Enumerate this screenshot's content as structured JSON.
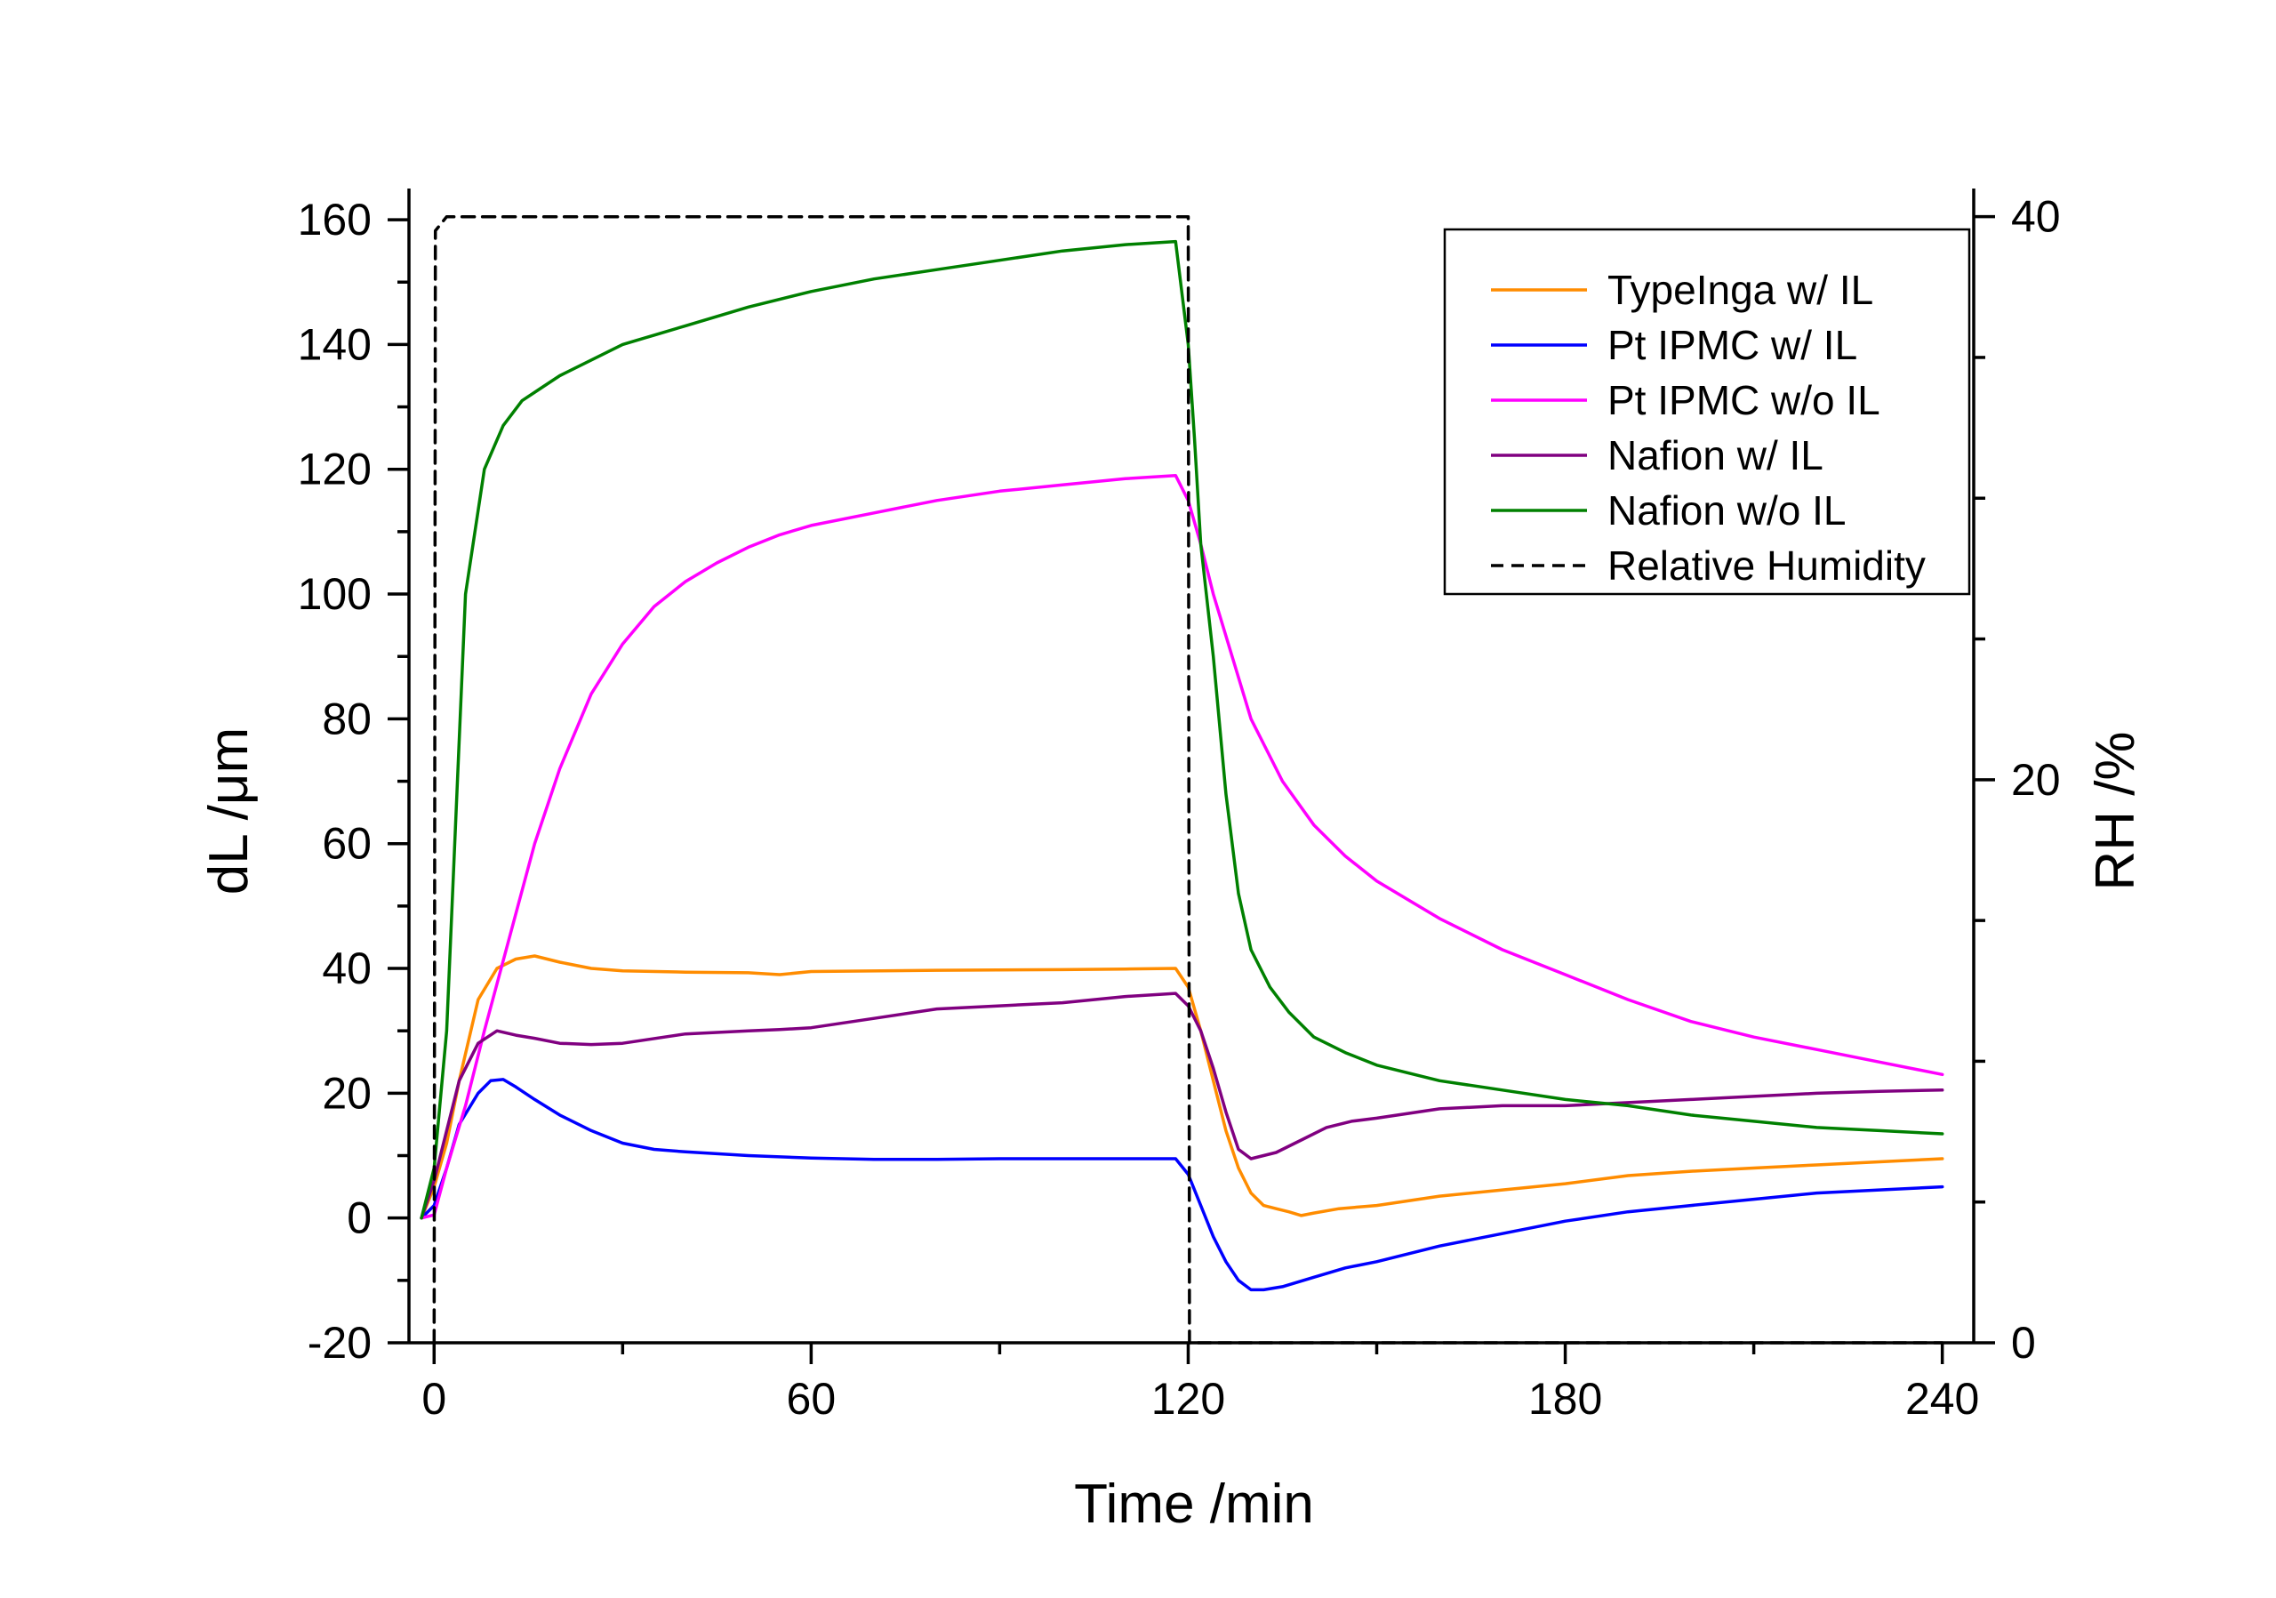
{
  "chart_data": {
    "type": "line",
    "xlabel": "Time /min",
    "ylabel": "dL /μm",
    "y2label": "RH /%",
    "xlim": [
      -4,
      245
    ],
    "ylim": [
      -20,
      165
    ],
    "y2lim": [
      0,
      41
    ],
    "xticks": [
      0,
      60,
      120,
      180,
      240
    ],
    "yticks": [
      -20,
      0,
      20,
      40,
      60,
      80,
      100,
      120,
      140,
      160
    ],
    "y2ticks": [
      0,
      20,
      40
    ],
    "legend_position": "top-right",
    "series": [
      {
        "name": "TypeInga w/ IL",
        "axis": "left",
        "color": "#ff8c00",
        "style": "solid",
        "x": [
          -2,
          0,
          2,
          4,
          7,
          10,
          13,
          16,
          20,
          25,
          30,
          40,
          50,
          55,
          60,
          80,
          100,
          110,
          118,
          120,
          122,
          124,
          126,
          128,
          130,
          132,
          134,
          136,
          138,
          140,
          144,
          150,
          160,
          170,
          180,
          190,
          200,
          210,
          220,
          230,
          240
        ],
        "y": [
          0,
          5,
          12,
          22,
          35,
          40,
          41.5,
          42,
          41,
          40,
          39.6,
          39.4,
          39.3,
          39,
          39.5,
          39.7,
          39.8,
          39.9,
          40,
          37,
          30,
          22,
          14,
          8,
          4,
          2,
          1.5,
          1,
          0.4,
          0.8,
          1.5,
          2,
          3.5,
          4.5,
          5.5,
          6.8,
          7.5,
          8,
          8.5,
          9,
          9.5
        ]
      },
      {
        "name": "Pt IPMC w/ IL",
        "axis": "left",
        "color": "#0000ff",
        "style": "solid",
        "x": [
          -2,
          0,
          2,
          4,
          7,
          9,
          11,
          13,
          16,
          20,
          25,
          30,
          35,
          40,
          50,
          60,
          70,
          80,
          90,
          100,
          110,
          118,
          120,
          122,
          124,
          126,
          128,
          130,
          132,
          135,
          140,
          145,
          150,
          160,
          170,
          180,
          190,
          200,
          210,
          220,
          230,
          240
        ],
        "y": [
          0,
          2,
          8,
          15,
          20,
          22,
          22.2,
          21,
          19,
          16.5,
          14,
          12,
          11,
          10.6,
          10,
          9.6,
          9.4,
          9.4,
          9.5,
          9.5,
          9.5,
          9.5,
          7,
          2,
          -3,
          -7,
          -10,
          -11.5,
          -11.5,
          -11,
          -9.5,
          -8,
          -7,
          -4.5,
          -2.5,
          -0.5,
          1,
          2,
          3,
          4,
          4.5,
          5
        ]
      },
      {
        "name": "Pt IPMC w/o IL",
        "axis": "left",
        "color": "#ff00ff",
        "style": "solid",
        "x": [
          -2,
          0,
          2,
          5,
          8,
          12,
          16,
          20,
          25,
          30,
          35,
          40,
          45,
          50,
          55,
          60,
          70,
          80,
          90,
          100,
          110,
          118,
          120,
          122,
          124,
          127,
          130,
          135,
          140,
          145,
          150,
          160,
          170,
          180,
          190,
          200,
          210,
          220,
          230,
          240
        ],
        "y": [
          0,
          0.5,
          8,
          18,
          30,
          45,
          60,
          72,
          84,
          92,
          98,
          102,
          105,
          107.5,
          109.5,
          111,
          113,
          115,
          116.5,
          117.5,
          118.5,
          119,
          115,
          108,
          100,
          90,
          80,
          70,
          63,
          58,
          54,
          48,
          43,
          39,
          35,
          31.5,
          29,
          27,
          25,
          23
        ]
      },
      {
        "name": "Nafion w/ IL",
        "axis": "left",
        "color": "#800080",
        "style": "solid",
        "x": [
          -2,
          0,
          2,
          4,
          7,
          10,
          13,
          16,
          20,
          25,
          30,
          40,
          50,
          55,
          60,
          70,
          80,
          90,
          100,
          110,
          118,
          120,
          122,
          124,
          126,
          128,
          130,
          134,
          138,
          142,
          146,
          150,
          160,
          170,
          180,
          190,
          200,
          210,
          220,
          230,
          240
        ],
        "y": [
          0,
          6,
          14,
          22,
          28,
          30,
          29.3,
          28.8,
          28,
          27.8,
          28,
          29.5,
          30,
          30.2,
          30.5,
          32,
          33.5,
          34,
          34.5,
          35.5,
          36,
          34,
          30,
          24,
          17,
          11,
          9.5,
          10.5,
          12.5,
          14.5,
          15.5,
          16,
          17.5,
          18,
          18,
          18.5,
          19,
          19.5,
          20,
          20.3,
          20.5
        ]
      },
      {
        "name": "Nafion w/o IL",
        "axis": "left",
        "color": "#008000",
        "style": "solid",
        "x": [
          -2,
          0,
          2,
          5,
          8,
          11,
          14,
          17,
          20,
          25,
          30,
          35,
          40,
          50,
          60,
          70,
          80,
          90,
          100,
          110,
          118,
          120,
          121,
          122,
          124,
          126,
          128,
          130,
          133,
          136,
          140,
          145,
          150,
          160,
          170,
          180,
          190,
          200,
          210,
          220,
          230,
          240
        ],
        "y": [
          0,
          8,
          30,
          100,
          120,
          127,
          131,
          133,
          135,
          137.5,
          140,
          141.5,
          143,
          146,
          148.5,
          150.5,
          152,
          153.5,
          155,
          156,
          156.5,
          140,
          125,
          108,
          90,
          68,
          52,
          43,
          37,
          33,
          29,
          26.5,
          24.5,
          22,
          20.5,
          19,
          18,
          16.5,
          15.5,
          14.5,
          14,
          13.5
        ]
      },
      {
        "name": "Relative Humidity",
        "axis": "right",
        "color": "#000000",
        "style": "dashed",
        "x": [
          0,
          0.2,
          2,
          120,
          120.2,
          240
        ],
        "y": [
          0,
          39.5,
          40,
          40,
          0,
          0
        ]
      }
    ]
  }
}
